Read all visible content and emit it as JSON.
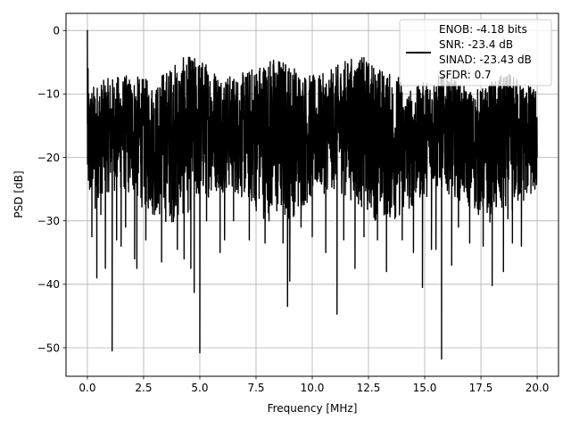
{
  "chart_data": {
    "type": "line",
    "title": "",
    "xlabel": "Frequency [MHz]",
    "ylabel": "PSD [dB]",
    "xlim": [
      -0.95,
      20.95
    ],
    "ylim": [
      -54.5,
      2.7
    ],
    "xticks": [
      0.0,
      2.5,
      5.0,
      7.5,
      10.0,
      12.5,
      15.0,
      17.5,
      20.0
    ],
    "xtick_labels": [
      "0.0",
      "2.5",
      "5.0",
      "7.5",
      "10.0",
      "12.5",
      "15.0",
      "17.5",
      "20.0"
    ],
    "yticks": [
      0,
      -10,
      -20,
      -30,
      -40,
      -50
    ],
    "ytick_labels": [
      "0",
      "−10",
      "−20",
      "−30",
      "−40",
      "−50"
    ],
    "grid": true,
    "legend": {
      "placement": "upper right",
      "entries": [
        "ENOB: -4.18 bits",
        "SNR: -23.4 dB",
        "SINAD: -23.43 dB",
        "SFDR: 0.7"
      ]
    },
    "series": [
      {
        "color": "#000000",
        "x_range": [
          0.0,
          20.0
        ],
        "spectrum_shape": "noise-like PSD; dense fluctuation between about -3 dB and -30 dB",
        "points": [
          [
            0.0,
            0.0
          ],
          [
            0.03,
            -6.0
          ],
          [
            0.06,
            -10.0
          ],
          [
            0.1,
            -25.0
          ],
          [
            0.2,
            -32.5
          ],
          [
            0.35,
            -28.0
          ],
          [
            0.42,
            -39.0
          ],
          [
            0.6,
            -29.0
          ],
          [
            0.8,
            -37.5
          ],
          [
            1.1,
            -50.5
          ],
          [
            1.3,
            -33.0
          ],
          [
            1.5,
            -34.0
          ],
          [
            1.7,
            -31.0
          ],
          [
            2.1,
            -36.0
          ],
          [
            2.2,
            -37.5
          ],
          [
            2.6,
            -33.0
          ],
          [
            3.3,
            -36.5
          ],
          [
            3.5,
            -13.0
          ],
          [
            4.0,
            -34.5
          ],
          [
            4.3,
            -36.0
          ],
          [
            4.6,
            -37.5
          ],
          [
            4.75,
            -41.3
          ],
          [
            5.0,
            -50.8
          ],
          [
            5.3,
            -30.0
          ],
          [
            5.9,
            -35.0
          ],
          [
            6.1,
            -33.0
          ],
          [
            6.5,
            -30.0
          ],
          [
            7.2,
            -33.0
          ],
          [
            7.5,
            -7.0
          ],
          [
            7.9,
            -33.5
          ],
          [
            8.7,
            -33.5
          ],
          [
            8.9,
            -43.5
          ],
          [
            9.0,
            -39.5
          ],
          [
            9.5,
            -31.0
          ],
          [
            10.0,
            -32.5
          ],
          [
            10.6,
            -35.0
          ],
          [
            11.1,
            -44.7
          ],
          [
            11.4,
            -33.0
          ],
          [
            11.9,
            -37.5
          ],
          [
            12.3,
            -32.5
          ],
          [
            12.9,
            -33.0
          ],
          [
            13.3,
            -38.0
          ],
          [
            14.0,
            -33.0
          ],
          [
            14.5,
            -35.0
          ],
          [
            14.9,
            -40.5
          ],
          [
            15.3,
            -34.5
          ],
          [
            15.5,
            -34.5
          ],
          [
            15.75,
            -51.8
          ],
          [
            16.2,
            -37.0
          ],
          [
            16.5,
            -31.0
          ],
          [
            17.0,
            -33.5
          ],
          [
            17.6,
            -34.0
          ],
          [
            18.0,
            -40.2
          ],
          [
            18.5,
            -38.0
          ],
          [
            18.9,
            -33.5
          ],
          [
            19.3,
            -34.0
          ],
          [
            19.9,
            -25.0
          ],
          [
            20.0,
            -20.0
          ]
        ]
      }
    ]
  }
}
